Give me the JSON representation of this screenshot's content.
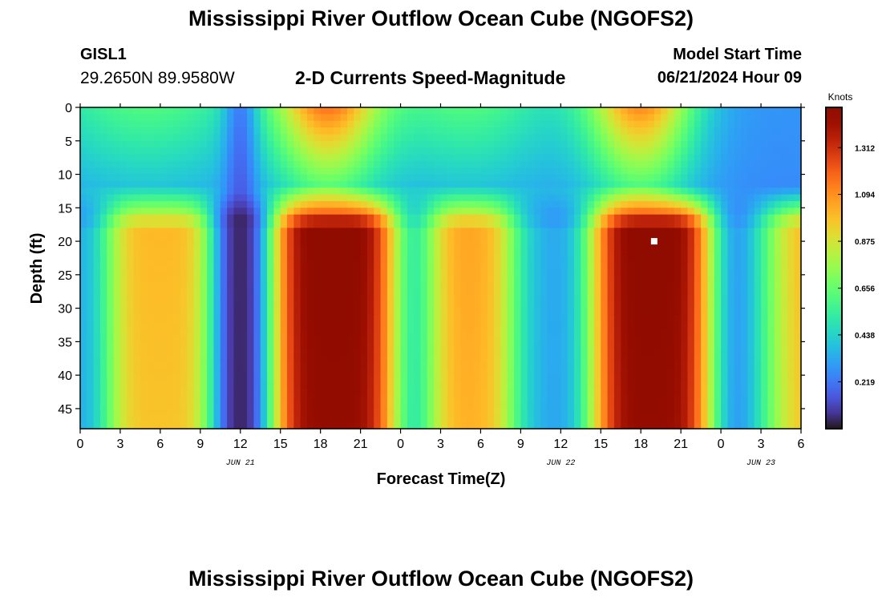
{
  "header": {
    "title": "Mississippi River Outflow Ocean Cube (NGOFS2)",
    "station_id": "GISL1",
    "station_coords": "29.2650N  89.9580W",
    "subtitle": "2-D Currents Speed-Magnitude",
    "model_start_label": "Model Start Time",
    "model_start_value": "06/21/2024 Hour 09"
  },
  "footer": {
    "title": "Mississippi River Outflow Ocean Cube (NGOFS2)"
  },
  "chart_data": {
    "type": "heatmap",
    "title": "2-D Currents Speed-Magnitude",
    "xlabel": "Forecast Time(Z)",
    "ylabel": "Depth (ft)",
    "x_range_hours": [
      0,
      54
    ],
    "x_tick_labels": [
      "0",
      "3",
      "6",
      "9",
      "12",
      "15",
      "18",
      "21",
      "0",
      "3",
      "6",
      "9",
      "12",
      "15",
      "18",
      "21",
      "0",
      "3",
      "6"
    ],
    "date_labels": [
      "JUN 21",
      "JUN 22",
      "JUN 23"
    ],
    "y_range": [
      0,
      48
    ],
    "y_ticks": [
      0,
      5,
      10,
      15,
      20,
      25,
      30,
      35,
      40,
      45
    ],
    "y_reversed": true,
    "colorbar": {
      "label": "Knots",
      "ticks": [
        "1.312",
        "1.094",
        "0.875",
        "0.656",
        "0.438",
        "0.219"
      ],
      "range": [
        0,
        1.5
      ],
      "colormap": "turbo"
    },
    "surface_peaks_hours": [
      18.5,
      42
    ],
    "surface_max_knots": 1.1,
    "mid_minimum_hours": [
      12,
      33.5,
      50
    ],
    "lower_peaks_hours": [
      6,
      19,
      30,
      43,
      54
    ],
    "lower_peak_knots": [
      1.0,
      1.5,
      1.05,
      1.5,
      1.05
    ],
    "layer_break_depth_ft": 16.5,
    "marker": {
      "hour": 43,
      "depth_ft": 20
    }
  }
}
